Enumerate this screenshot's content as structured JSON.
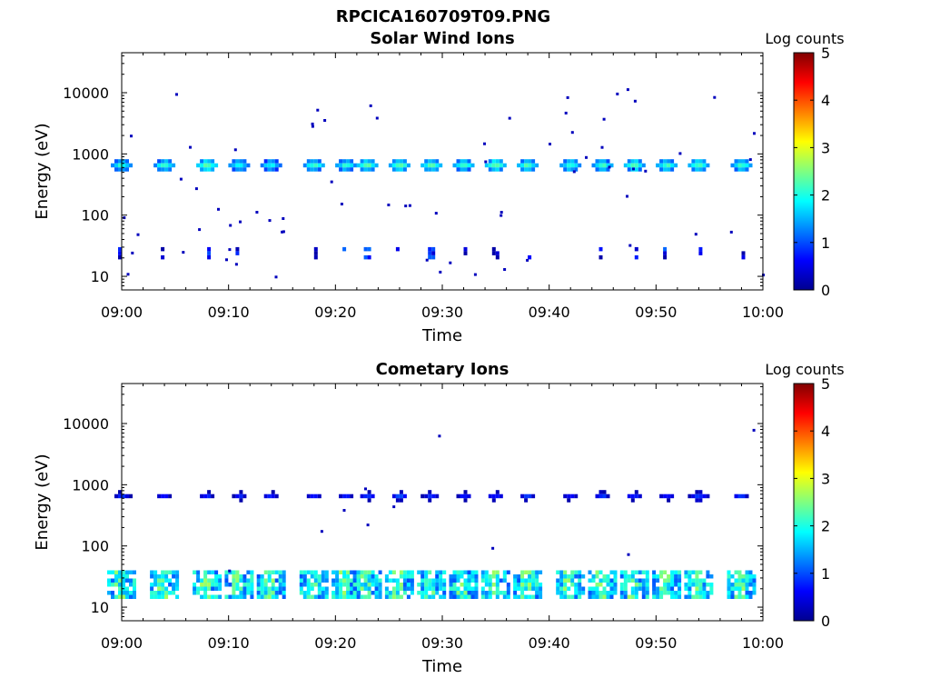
{
  "figure": {
    "title": "RPCICA160709T09.PNG"
  },
  "chart_data": [
    {
      "type": "heatmap",
      "title": "Solar Wind Ions",
      "xlabel": "Time",
      "ylabel": "Energy (eV)",
      "x_tick_labels": [
        "09:00",
        "09:10",
        "09:20",
        "09:30",
        "09:40",
        "09:50",
        "10:00"
      ],
      "xlim": [
        "09:00",
        "10:00"
      ],
      "y_scale": "log",
      "ylim": [
        6,
        45000
      ],
      "y_tick_labels": [
        "10",
        "100",
        "1000",
        "10000"
      ],
      "colorbar": {
        "label": "Log counts",
        "range": [
          0,
          5
        ],
        "tick_labels": [
          "0",
          "1",
          "2",
          "3",
          "4",
          "5"
        ],
        "colormap": "jet"
      },
      "peak_energy_eV": 650,
      "scan_times": [
        "09:00",
        "09:04",
        "09:08",
        "09:11",
        "09:14",
        "09:18",
        "09:21",
        "09:23",
        "09:26",
        "09:29",
        "09:32",
        "09:35",
        "09:38",
        "09:42",
        "09:45",
        "09:48",
        "09:51",
        "09:54",
        "09:58"
      ],
      "peak_log_counts": [
        2.3,
        2.4,
        2.6,
        2.3,
        2.2,
        2.4,
        2.3,
        2.5,
        2.6,
        2.5,
        2.4,
        2.6,
        2.5,
        2.4,
        2.4,
        2.5,
        2.4,
        2.5,
        2.4
      ],
      "low_energy_band_eV": [
        20,
        30
      ],
      "low_energy_log_counts": 0.6
    },
    {
      "type": "heatmap",
      "title": "Cometary Ions",
      "xlabel": "Time",
      "ylabel": "Energy (eV)",
      "x_tick_labels": [
        "09:00",
        "09:10",
        "09:20",
        "09:30",
        "09:40",
        "09:50",
        "10:00"
      ],
      "xlim": [
        "09:00",
        "10:00"
      ],
      "y_scale": "log",
      "ylim": [
        6,
        45000
      ],
      "y_tick_labels": [
        "10",
        "100",
        "1000",
        "10000"
      ],
      "colorbar": {
        "label": "Log counts",
        "range": [
          0,
          5
        ],
        "tick_labels": [
          "0",
          "1",
          "2",
          "3",
          "4",
          "5"
        ],
        "colormap": "jet"
      },
      "peak_energy_eV": 650,
      "scan_times": [
        "09:00",
        "09:04",
        "09:08",
        "09:11",
        "09:14",
        "09:18",
        "09:21",
        "09:23",
        "09:26",
        "09:29",
        "09:32",
        "09:35",
        "09:38",
        "09:42",
        "09:45",
        "09:48",
        "09:51",
        "09:54",
        "09:58"
      ],
      "peak_log_counts": [
        1.1,
        1.0,
        1.0,
        1.0,
        1.0,
        0.9,
        1.0,
        1.1,
        1.2,
        1.1,
        1.0,
        1.1,
        1.1,
        1.0,
        1.1,
        1.1,
        1.0,
        1.2,
        1.1
      ],
      "low_energy_band_eV": [
        14,
        40
      ],
      "low_energy_log_counts": 1.6
    }
  ]
}
